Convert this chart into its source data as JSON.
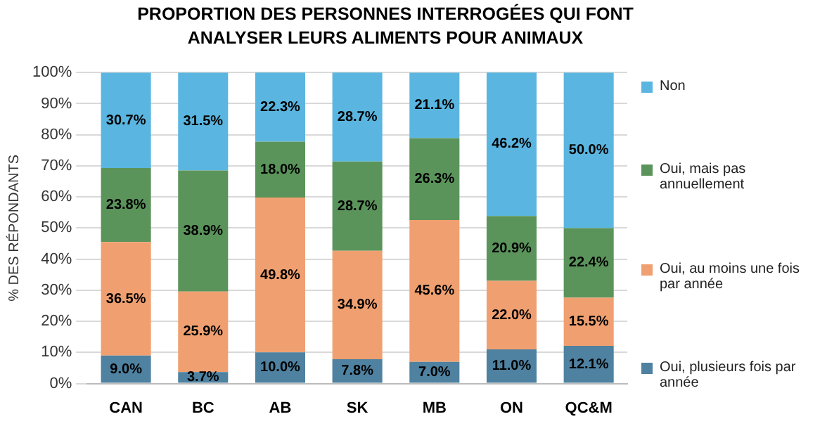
{
  "chart_data": {
    "type": "bar",
    "stacked": true,
    "title": "PROPORTION DES PERSONNES INTERROGÉES QUI FONT ANALYSER LEURS ALIMENTS POUR ANIMAUX",
    "ylabel": "% DES RÉPONDANTS",
    "categories": [
      "CAN",
      "BC",
      "AB",
      "SK",
      "MB",
      "ON",
      "QC&M"
    ],
    "series": [
      {
        "name": "Oui, plusieurs fois par année",
        "color": "#4f81a0",
        "values": [
          9.0,
          3.7,
          10.0,
          7.8,
          7.0,
          11.0,
          12.1
        ],
        "value_labels": [
          "9.0%",
          "3.7%",
          "10.0%",
          "7.8%",
          "7.0%",
          "11.0%",
          "12.1%"
        ]
      },
      {
        "name": "Oui, au moins une fois par année",
        "color": "#f0a070",
        "values": [
          36.5,
          25.9,
          49.8,
          34.9,
          45.6,
          22.0,
          15.5
        ],
        "value_labels": [
          "36.5%",
          "25.9%",
          "49.8%",
          "34.9%",
          "45.6%",
          "22.0%",
          "15.5%"
        ]
      },
      {
        "name": "Oui, mais pas annuellement",
        "color": "#5b945b",
        "values": [
          23.8,
          38.9,
          18.0,
          28.7,
          26.3,
          20.9,
          22.4
        ],
        "value_labels": [
          "23.8%",
          "38.9%",
          "18.0%",
          "28.7%",
          "26.3%",
          "20.9%",
          "22.4%"
        ]
      },
      {
        "name": "Non",
        "color": "#5ab6e0",
        "values": [
          30.7,
          31.5,
          22.3,
          28.7,
          21.1,
          46.2,
          50.0
        ],
        "value_labels": [
          "30.7%",
          "31.5%",
          "22.3%",
          "28.7%",
          "21.1%",
          "46.2%",
          "50.0%"
        ]
      }
    ],
    "ylim": [
      0,
      100
    ],
    "yticks": [
      {
        "value": 0,
        "label": "0%"
      },
      {
        "value": 10,
        "label": "10%"
      },
      {
        "value": 20,
        "label": "20%"
      },
      {
        "value": 30,
        "label": "30%"
      },
      {
        "value": 40,
        "label": "40%"
      },
      {
        "value": 50,
        "label": "50%"
      },
      {
        "value": 60,
        "label": "60%"
      },
      {
        "value": 70,
        "label": "70%"
      },
      {
        "value": 80,
        "label": "80%"
      },
      {
        "value": 90,
        "label": "90%"
      },
      {
        "value": 100,
        "label": "100%"
      }
    ],
    "grid": "y",
    "legend": "right"
  }
}
